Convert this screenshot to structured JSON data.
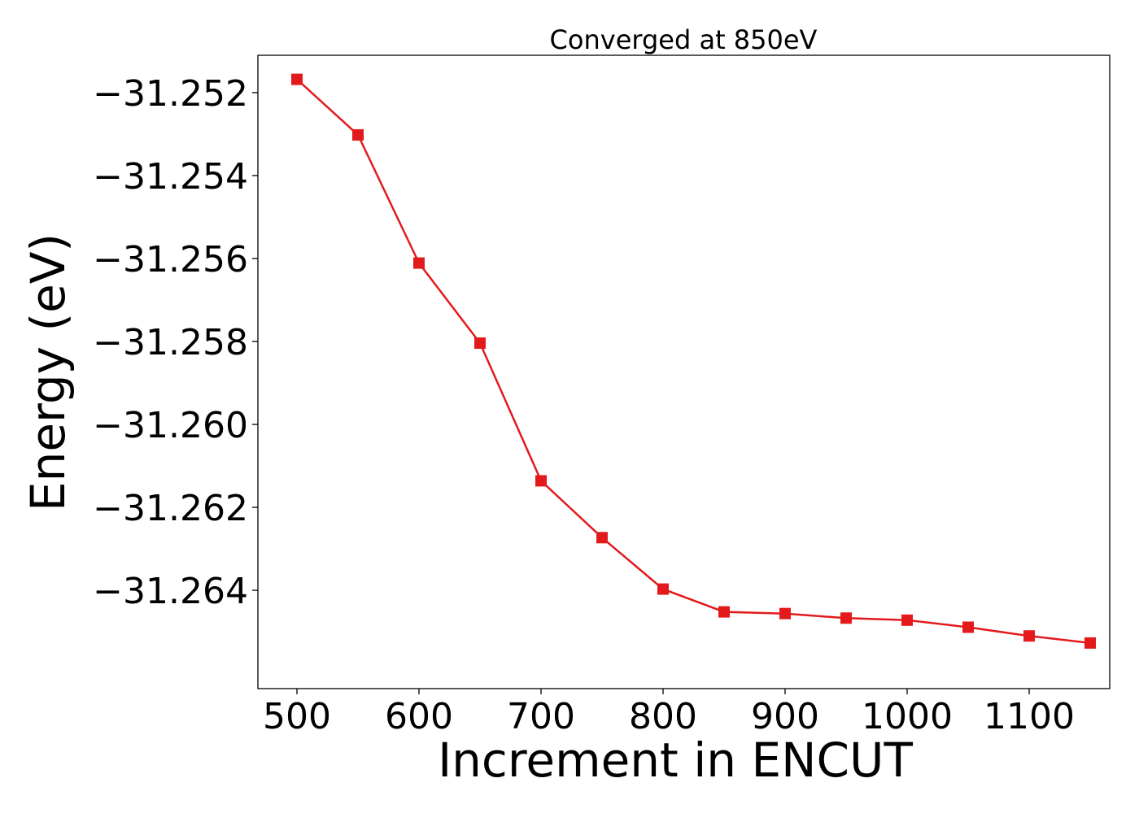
{
  "chart_data": {
    "type": "line",
    "title": "Converged at 850eV",
    "xlabel": "Increment in ENCUT",
    "ylabel": "Energy (eV)",
    "xlim": [
      468,
      1166
    ],
    "ylim": [
      -31.26637,
      -31.2511
    ],
    "x_ticks": [
      500,
      600,
      700,
      800,
      900,
      1000,
      1100
    ],
    "x_tick_labels": [
      "500",
      "600",
      "700",
      "800",
      "900",
      "1000",
      "1100"
    ],
    "y_ticks": [
      -31.252,
      -31.254,
      -31.256,
      -31.258,
      -31.26,
      -31.262,
      -31.264
    ],
    "y_tick_labels": [
      "−31.252",
      "−31.254",
      "−31.256",
      "−31.258",
      "−31.260",
      "−31.262",
      "−31.264"
    ],
    "grid": false,
    "legend": "none",
    "series": [
      {
        "color": "#e31a1c",
        "marker": "square",
        "x": [
          500,
          550,
          600,
          650,
          700,
          750,
          800,
          850,
          900,
          950,
          1000,
          1050,
          1100,
          1150
        ],
        "y": [
          -31.25168,
          -31.25302,
          -31.25611,
          -31.25804,
          -31.26136,
          -31.26273,
          -31.26397,
          -31.26452,
          -31.26456,
          -31.26467,
          -31.26472,
          -31.26489,
          -31.2651,
          -31.26527
        ]
      }
    ]
  }
}
